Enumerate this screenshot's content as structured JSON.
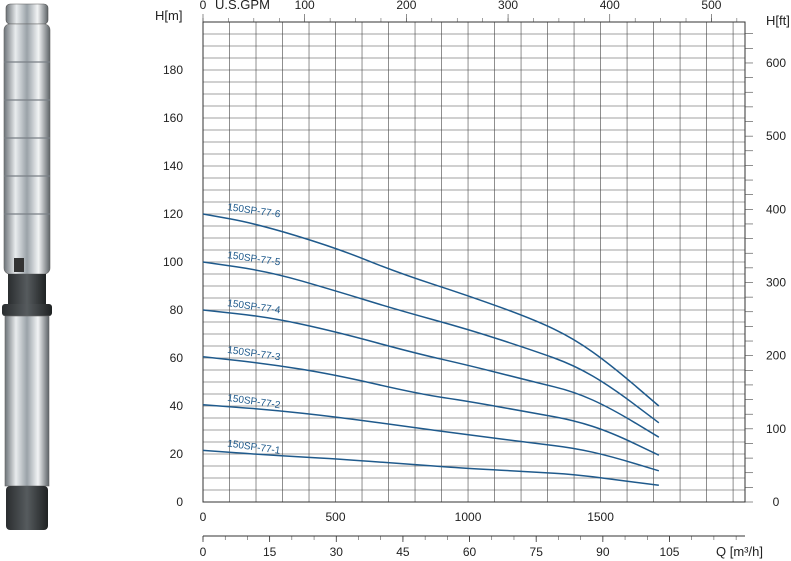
{
  "chart_data": {
    "type": "line",
    "title": "",
    "axes": {
      "left": {
        "label": "H[m]",
        "min": 0,
        "max": 200,
        "ticks": [
          0,
          20,
          40,
          60,
          80,
          100,
          120,
          140,
          160,
          180
        ]
      },
      "right": {
        "label": "H[ft]",
        "min": 0,
        "max": 656,
        "ticks": [
          0,
          100,
          200,
          300,
          400,
          500,
          600
        ]
      },
      "top": {
        "label": "U.S.GPM",
        "min": 0,
        "max": 533,
        "ticks": [
          0,
          100,
          200,
          300,
          400,
          500
        ]
      },
      "bottom_main": {
        "label": "",
        "min": 0,
        "max": 2045,
        "ticks": [
          0,
          500,
          1000,
          1500
        ]
      },
      "bottom_flow": {
        "label": "Q [m³/h]",
        "min": 0,
        "max": 122,
        "ticks": [
          0,
          15,
          30,
          45,
          60,
          75,
          90,
          105
        ]
      }
    },
    "grid": true,
    "legend": "inline",
    "series": [
      {
        "name": "150SP-77-6",
        "x": [
          0,
          200,
          500,
          735,
          1000,
          1250,
          1400,
          1540,
          1720
        ],
        "y": [
          120,
          116,
          106,
          95.5,
          86,
          76,
          68,
          57,
          40
        ]
      },
      {
        "name": "150SP-77-5",
        "x": [
          0,
          250,
          500,
          735,
          1000,
          1250,
          1400,
          1540,
          1720
        ],
        "y": [
          100,
          96,
          88,
          80,
          72,
          63,
          57,
          48,
          33
        ]
      },
      {
        "name": "150SP-77-4",
        "x": [
          0,
          250,
          500,
          800,
          1000,
          1250,
          1400,
          1540,
          1720
        ],
        "y": [
          80,
          77,
          71,
          62,
          57,
          50,
          46,
          39,
          27
        ]
      },
      {
        "name": "150SP-77-3",
        "x": [
          0,
          250,
          500,
          815,
          1000,
          1250,
          1400,
          1540,
          1720
        ],
        "y": [
          60.5,
          57.5,
          53,
          45,
          42,
          37,
          34,
          29,
          19.5
        ]
      },
      {
        "name": "150SP-77-2",
        "x": [
          0,
          250,
          500,
          800,
          1000,
          1250,
          1400,
          1540,
          1720
        ],
        "y": [
          40.5,
          38.5,
          35.5,
          31,
          28,
          24.5,
          22.5,
          19,
          13
        ]
      },
      {
        "name": "150SP-77-1",
        "x": [
          0,
          250,
          500,
          870,
          1000,
          1250,
          1400,
          1540,
          1720
        ],
        "y": [
          21.5,
          19.5,
          18,
          15,
          14,
          12.5,
          11.5,
          9.5,
          7
        ]
      }
    ]
  },
  "product_image": {
    "icon": "submersible-pump-icon"
  }
}
